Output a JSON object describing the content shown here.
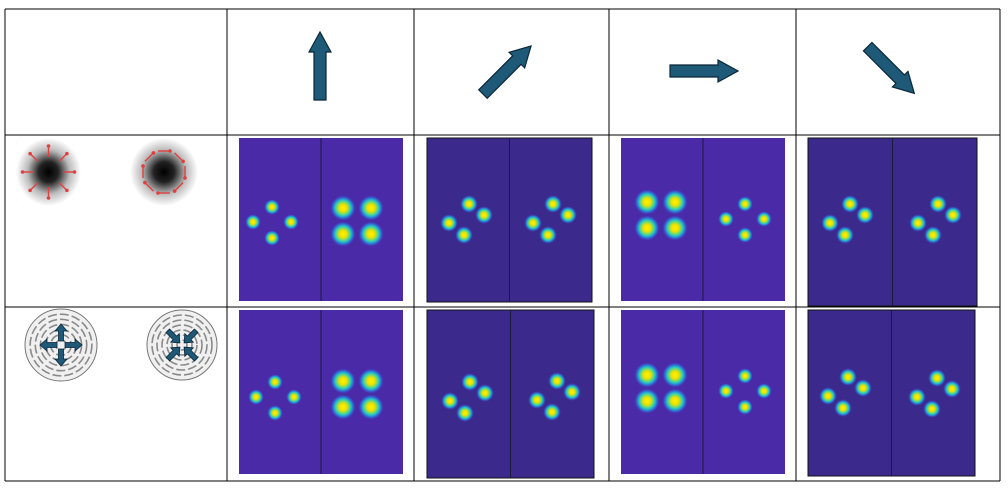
{
  "colors": {
    "arrow_fill": "#1e5a78",
    "arrow_stroke": "#0a2638",
    "grid_line": "#000000",
    "panel_purple_light": "#4b2aa8",
    "panel_purple_dark": "#3b2a8c",
    "spot_ring": "#2b86e0",
    "spot_core": "#ffe600",
    "polarizer_red_arrow": "#e04040"
  },
  "header_arrows": [
    {
      "name": "up-arrow",
      "direction_deg": 90
    },
    {
      "name": "up-right-arrow",
      "direction_deg": 45
    },
    {
      "name": "right-arrow",
      "direction_deg": 0
    },
    {
      "name": "down-right-arrow",
      "direction_deg": -45
    }
  ],
  "rows": [
    {
      "name": "polarizer-row",
      "icons": [
        "radial-polarization-icon",
        "azimuthal-polarization-icon"
      ],
      "cells": [
        {
          "shade": "light",
          "left": "diamond-small",
          "right": "square-large"
        },
        {
          "shade": "dark",
          "left": "tilted-small",
          "right": "tilted-small"
        },
        {
          "shade": "light",
          "left": "square-large",
          "right": "diamond-small"
        },
        {
          "shade": "dark",
          "left": "tilted-small",
          "right": "tilted-small"
        }
      ]
    },
    {
      "name": "metasurface-row",
      "icons": [
        "radial-metasurface-icon",
        "azimuthal-metasurface-icon"
      ],
      "cells": [
        {
          "shade": "light",
          "left": "diamond-small",
          "right": "square-large"
        },
        {
          "shade": "dark",
          "left": "tilted-small",
          "right": "tilted-small"
        },
        {
          "shade": "light",
          "left": "square-large",
          "right": "diamond-small"
        },
        {
          "shade": "dark",
          "left": "tilted-small",
          "right": "tilted-small"
        }
      ]
    }
  ]
}
